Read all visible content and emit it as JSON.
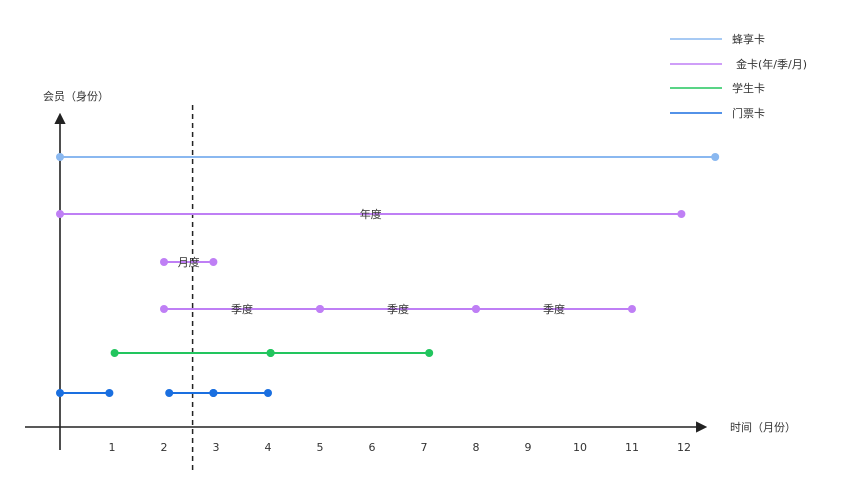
{
  "axes": {
    "y_title": "会员（身份）",
    "x_title": "时间（月份）",
    "x_ticks": [
      "1",
      "2",
      "3",
      "4",
      "5",
      "6",
      "7",
      "8",
      "9",
      "10",
      "11",
      "12"
    ],
    "x_range": [
      0,
      12.5
    ]
  },
  "legend": {
    "items": [
      {
        "name": "蜂享卡",
        "color": "#8ab8f0"
      },
      {
        "name": "金卡(年/季/月)",
        "color": "#bf7ff5"
      },
      {
        "name": "学生卡",
        "color": "#22c55e"
      },
      {
        "name": "门票卡",
        "color": "#1a6fe0"
      }
    ]
  },
  "marker_month": 2.55,
  "rows": [
    {
      "card": "蜂享卡",
      "color": "#8ab8f0",
      "segments": [
        {
          "from": 0,
          "to": 12.6,
          "label": ""
        }
      ]
    },
    {
      "card": "金卡(年/季/月)",
      "color": "#bf7ff5",
      "segments": [
        {
          "from": 0,
          "to": 11.95,
          "label": "年度"
        }
      ]
    },
    {
      "card": "金卡(年/季/月)",
      "color": "#bf7ff5",
      "segments": [
        {
          "from": 2,
          "to": 2.95,
          "label": "月度"
        }
      ]
    },
    {
      "card": "金卡(年/季/月)",
      "color": "#bf7ff5",
      "segments": [
        {
          "from": 2,
          "to": 5,
          "label": "季度"
        },
        {
          "from": 5,
          "to": 8,
          "label": "季度"
        },
        {
          "from": 8,
          "to": 11,
          "label": "季度"
        }
      ]
    },
    {
      "card": "学生卡",
      "color": "#22c55e",
      "segments": [
        {
          "from": 1.05,
          "to": 4.05,
          "label": ""
        },
        {
          "from": 4.05,
          "to": 7.1,
          "label": ""
        }
      ]
    },
    {
      "card": "门票卡",
      "color": "#1a6fe0",
      "segments": [
        {
          "from": 0,
          "to": 0.95,
          "label": ""
        },
        {
          "from": 2.1,
          "to": 2.95,
          "label": ""
        },
        {
          "from": 2.95,
          "to": 4.0,
          "label": ""
        }
      ]
    }
  ]
}
